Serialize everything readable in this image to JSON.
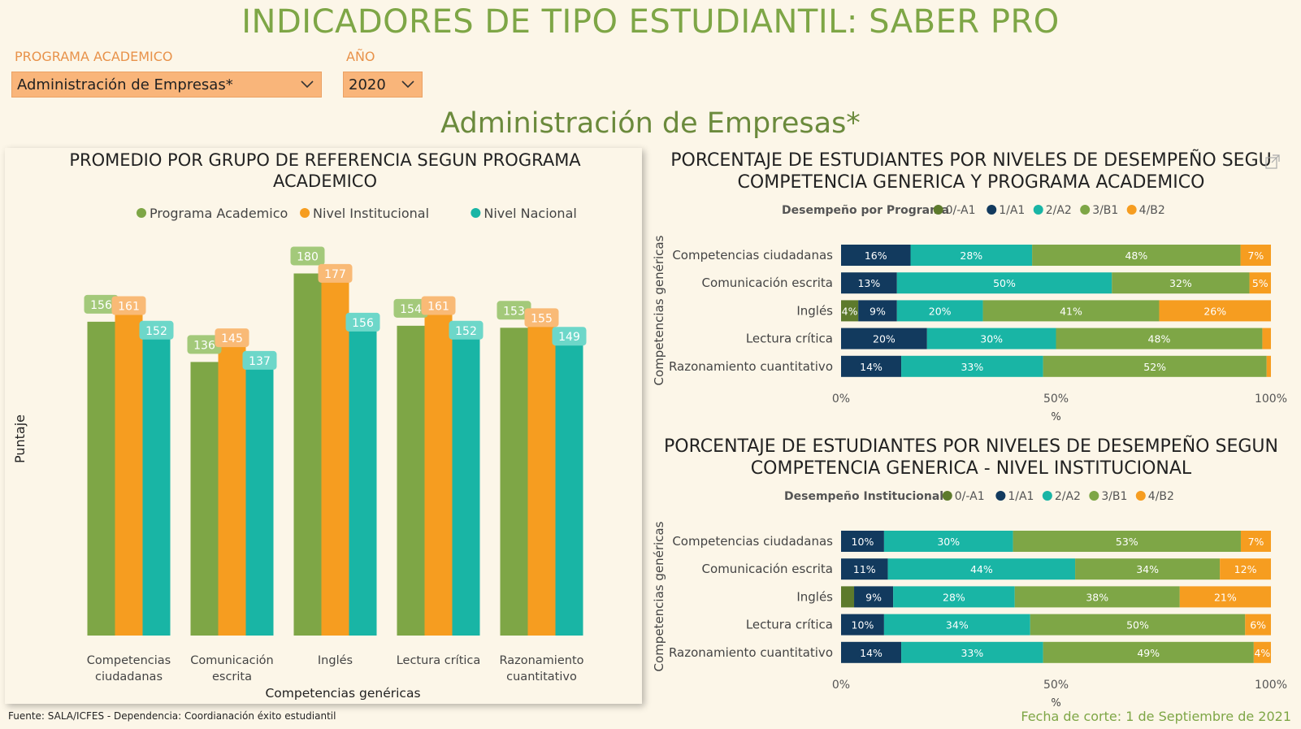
{
  "header": {
    "title": "INDICADORES DE TIPO ESTUDIANTIL: SABER PRO",
    "program_label": "PROGRAMA ACADEMICO",
    "program_value": "Administración de Empresas*",
    "year_label": "AÑO",
    "year_value": "2020",
    "subtitle": "Administración de Empresas*"
  },
  "footer": {
    "source": "Fuente: SALA/ICFES - Dependencia: Coordianación éxito estudiantil",
    "cutoff": "Fecha de corte: 1 de Septiembre de 2021"
  },
  "colors": {
    "green": "#7ea646",
    "orange": "#f69d20",
    "teal": "#19b5a5",
    "olive": "#5d7a2c",
    "navy": "#123a5e",
    "label_green": "#a3c97a",
    "label_orange": "#f9ba76",
    "label_teal": "#6dd7c9"
  },
  "chart_data": [
    {
      "type": "bar",
      "title_lines": [
        "PROMEDIO POR GRUPO DE REFERENCIA SEGUN PROGRAMA",
        "ACADEMICO"
      ],
      "xlabel": "Competencias genéricas",
      "ylabel": "Puntaje",
      "categories": [
        [
          "Competencias",
          "ciudadanas"
        ],
        [
          "Comunicación",
          "escrita"
        ],
        [
          "Inglés"
        ],
        [
          "Lectura crítica"
        ],
        [
          "Razonamiento",
          "cuantitativo"
        ]
      ],
      "series": [
        {
          "name": "Programa Academico",
          "color": "#7ea646",
          "label_color": "#a3c97a",
          "values": [
            156,
            136,
            180,
            154,
            153
          ]
        },
        {
          "name": "Nivel Institucional",
          "color": "#f69d20",
          "label_color": "#f9ba76",
          "values": [
            161,
            145,
            177,
            161,
            155
          ]
        },
        {
          "name": "Nivel Nacional",
          "color": "#19b5a5",
          "label_color": "#6dd7c9",
          "values": [
            152,
            137,
            156,
            152,
            149
          ]
        }
      ],
      "ylim": [
        0,
        185
      ]
    },
    {
      "type": "stacked-bar-horizontal-100",
      "title_lines": [
        "PORCENTAJE DE ESTUDIANTES POR NIVELES DE DESEMPEÑO SEGU",
        "COMPETENCIA GENERICA Y PROGRAMA ACADEMICO"
      ],
      "legend_title": "Desempeño por Programa",
      "ylabel": "Competencias genéricas",
      "xlabel": "%",
      "xticks": [
        "0%",
        "50%",
        "100%"
      ],
      "legend": [
        {
          "name": "0/-A1",
          "color": "#5d7a2c"
        },
        {
          "name": "1/A1",
          "color": "#123a5e"
        },
        {
          "name": "2/A2",
          "color": "#19b5a5"
        },
        {
          "name": "3/B1",
          "color": "#7ea646"
        },
        {
          "name": "4/B2",
          "color": "#f69d20"
        }
      ],
      "categories": [
        "Competencias ciudadanas",
        "Comunicación escrita",
        "Inglés",
        "Lectura crítica",
        "Razonamiento cuantitativo"
      ],
      "values": [
        [
          0,
          16,
          28,
          48,
          7
        ],
        [
          0,
          13,
          50,
          32,
          5
        ],
        [
          4,
          9,
          20,
          41,
          26
        ],
        [
          0,
          20,
          30,
          48,
          2
        ],
        [
          0,
          14,
          33,
          52,
          1
        ]
      ]
    },
    {
      "type": "stacked-bar-horizontal-100",
      "title_lines": [
        "PORCENTAJE DE ESTUDIANTES POR NIVELES DE DESEMPEÑO SEGUN",
        "COMPETENCIA GENERICA - NIVEL INSTITUCIONAL"
      ],
      "legend_title": "Desempeño Institucional",
      "ylabel": "Competencias genéricas",
      "xlabel": "%",
      "xticks": [
        "0%",
        "50%",
        "100%"
      ],
      "legend": [
        {
          "name": "0/-A1",
          "color": "#5d7a2c"
        },
        {
          "name": "1/A1",
          "color": "#123a5e"
        },
        {
          "name": "2/A2",
          "color": "#19b5a5"
        },
        {
          "name": "3/B1",
          "color": "#7ea646"
        },
        {
          "name": "4/B2",
          "color": "#f69d20"
        }
      ],
      "categories": [
        "Competencias ciudadanas",
        "Comunicación escrita",
        "Inglés",
        "Lectura crítica",
        "Razonamiento cuantitativo"
      ],
      "values": [
        [
          0,
          10,
          30,
          53,
          7
        ],
        [
          0,
          11,
          44,
          34,
          12
        ],
        [
          3,
          9,
          28,
          38,
          21
        ],
        [
          0,
          10,
          34,
          50,
          6
        ],
        [
          0,
          14,
          33,
          49,
          4
        ]
      ]
    }
  ]
}
